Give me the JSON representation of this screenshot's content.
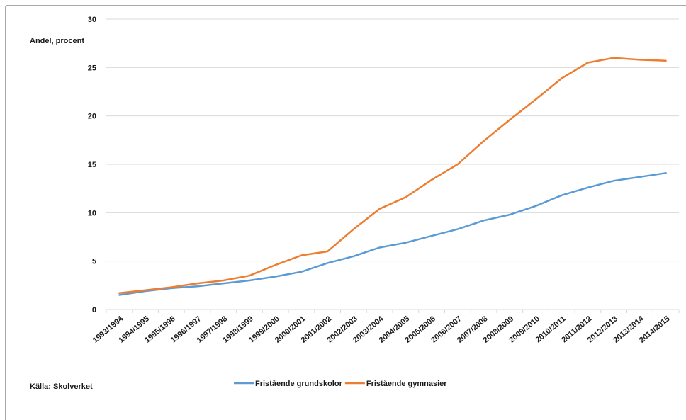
{
  "chart_data": {
    "type": "line",
    "ylabel": "Andel, procent",
    "source": "Källa: Skolverket",
    "ylim": [
      0,
      30
    ],
    "yticks": [
      0,
      5,
      10,
      15,
      20,
      25,
      30
    ],
    "grid": "horizontal",
    "legend_placement": "bottom",
    "categories": [
      "1993/1994",
      "1994/1995",
      "1995/1996",
      "1996/1997",
      "1997/1998",
      "1998/1999",
      "1999/2000",
      "2000/2001",
      "2001/2002",
      "2002/2003",
      "2003/2004",
      "2004/2005",
      "2005/2006",
      "2006/2007",
      "2007/2008",
      "2008/2009",
      "2009/2010",
      "2010/2011",
      "2011/2012",
      "2012/2013",
      "2013/2014",
      "2014/2015"
    ],
    "series": [
      {
        "name": "Fristående grundskolor",
        "color": "#5b9bd5",
        "values": [
          1.5,
          1.9,
          2.2,
          2.4,
          2.7,
          3.0,
          3.4,
          3.9,
          4.8,
          5.5,
          6.4,
          6.9,
          7.6,
          8.3,
          9.2,
          9.8,
          10.7,
          11.8,
          12.6,
          13.3,
          13.7,
          14.1
        ]
      },
      {
        "name": "Fristående gymnasier",
        "color": "#ed7d31",
        "values": [
          1.7,
          2.0,
          2.3,
          2.7,
          3.0,
          3.5,
          4.6,
          5.6,
          6.0,
          8.3,
          10.4,
          11.6,
          13.4,
          15.0,
          17.4,
          19.6,
          21.7,
          23.9,
          25.5,
          26.0,
          25.8,
          25.7
        ]
      }
    ]
  }
}
